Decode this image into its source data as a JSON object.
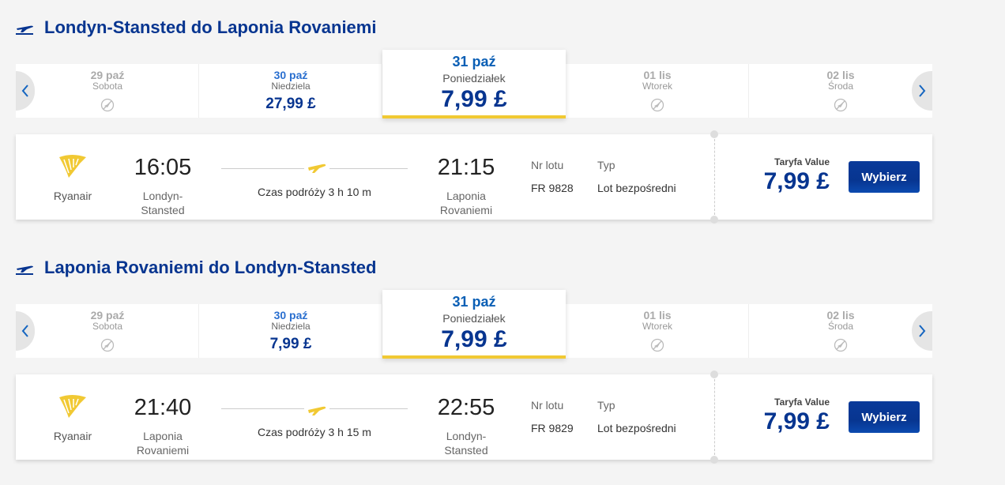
{
  "sections": [
    {
      "title": "Londyn-Stansted do Laponia Rovaniemi",
      "dates": [
        {
          "date": "29 paź",
          "day": "Sobota"
        },
        {
          "date": "30 paź",
          "day": "Niedziela",
          "price": "27,99 £"
        },
        {
          "date": "31 paź",
          "day": "Poniedziałek",
          "price": "7,99 £"
        },
        {
          "date": "01 lis",
          "day": "Wtorek"
        },
        {
          "date": "02 lis",
          "day": "Środa"
        }
      ],
      "flight": {
        "airline": "Ryanair",
        "dep_time": "16:05",
        "dep_airport": "Londyn-Stansted",
        "duration": "Czas podróży 3 h 10 m",
        "arr_time": "21:15",
        "arr_airport": "Laponia Rovaniemi",
        "flight_no_label": "Nr lotu",
        "flight_no": "FR 9828",
        "type_label": "Typ",
        "type": "Lot bezpośredni",
        "fare_label": "Taryfa Value",
        "price": "7,99 £",
        "button": "Wybierz"
      }
    },
    {
      "title": "Laponia Rovaniemi do Londyn-Stansted",
      "dates": [
        {
          "date": "29 paź",
          "day": "Sobota"
        },
        {
          "date": "30 paź",
          "day": "Niedziela",
          "price": "7,99 £"
        },
        {
          "date": "31 paź",
          "day": "Poniedziałek",
          "price": "7,99 £"
        },
        {
          "date": "01 lis",
          "day": "Wtorek"
        },
        {
          "date": "02 lis",
          "day": "Środa"
        }
      ],
      "flight": {
        "airline": "Ryanair",
        "dep_time": "21:40",
        "dep_airport": "Laponia Rovaniemi",
        "duration": "Czas podróży 3 h 15 m",
        "arr_time": "22:55",
        "arr_airport": "Londyn-Stansted",
        "flight_no_label": "Nr lotu",
        "flight_no": "FR 9829",
        "type_label": "Typ",
        "type": "Lot bezpośredni",
        "fare_label": "Taryfa Value",
        "price": "7,99 £",
        "button": "Wybierz"
      }
    }
  ]
}
